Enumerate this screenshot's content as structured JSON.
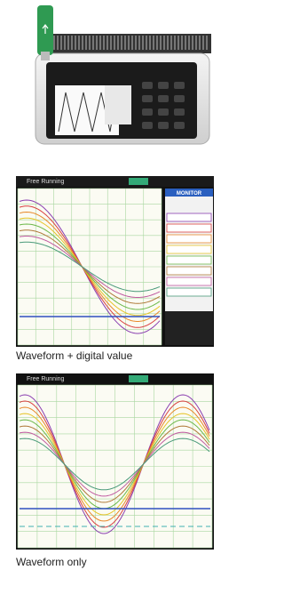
{
  "screens": [
    {
      "header": "Free Running",
      "panel_title": "MONITOR",
      "caption": "Waveform + digital value"
    },
    {
      "header": "Free Running",
      "caption": "Waveform only"
    }
  ]
}
